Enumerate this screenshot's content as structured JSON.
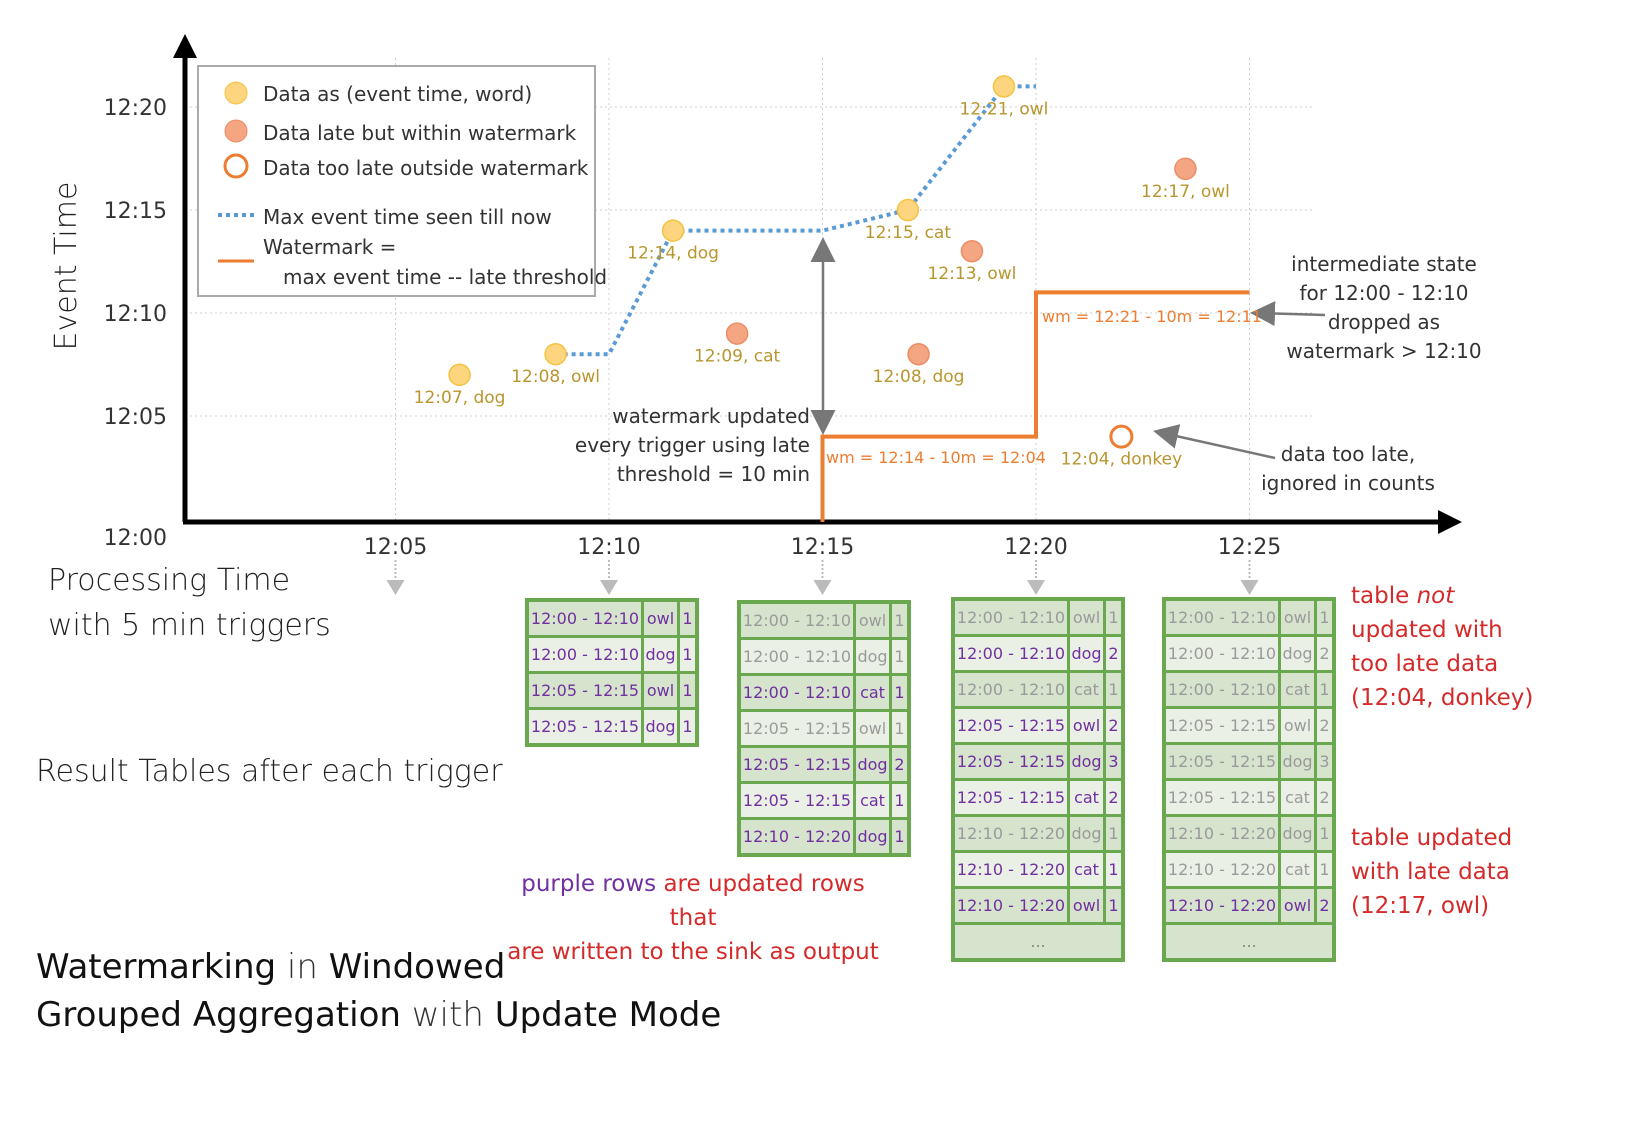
{
  "colors": {
    "on_time": "#fdd57e",
    "late": "#f4a582",
    "too_late": "#ed7d31",
    "max_line": "#5b9bd5",
    "watermark": "#ed7d31",
    "table_border": "#6aa84f",
    "updated_text": "#7030a0",
    "stale_text": "#9a9a9a",
    "note_red": "#d42a2a"
  },
  "axes": {
    "y_label": "Event Time",
    "y_ticks": [
      "12:00",
      "12:05",
      "12:10",
      "12:15",
      "12:20"
    ],
    "x_ticks": [
      "12:05",
      "12:10",
      "12:15",
      "12:20",
      "12:25"
    ],
    "x_label_line1": "Processing Time",
    "x_label_line2": "with 5 min triggers"
  },
  "legend": {
    "on_time": "Data as (event time, word)",
    "late": "Data late but within watermark",
    "too_late": "Data too late outside watermark",
    "max_line": "Max event time seen till now",
    "watermark_line1": "Watermark =",
    "watermark_line2": "max event time -- late threshold"
  },
  "points": [
    {
      "label": "12:07, dog",
      "event": "12:07",
      "processing": "12:06:30",
      "kind": "on_time"
    },
    {
      "label": "12:08, owl",
      "event": "12:08",
      "processing": "12:08:45",
      "kind": "on_time"
    },
    {
      "label": "12:14, dog",
      "event": "12:14",
      "processing": "12:11:30",
      "kind": "on_time"
    },
    {
      "label": "12:09, cat",
      "event": "12:09",
      "processing": "12:13:00",
      "kind": "late"
    },
    {
      "label": "12:15, cat",
      "event": "12:15",
      "processing": "12:17:00",
      "kind": "on_time"
    },
    {
      "label": "12:08, dog",
      "event": "12:08",
      "processing": "12:17:15",
      "kind": "late"
    },
    {
      "label": "12:13, owl",
      "event": "12:13",
      "processing": "12:18:30",
      "kind": "late"
    },
    {
      "label": "12:21, owl",
      "event": "12:21",
      "processing": "12:19:15",
      "kind": "on_time"
    },
    {
      "label": "12:04, donkey",
      "event": "12:04",
      "processing": "12:22:00",
      "kind": "too_late"
    },
    {
      "label": "12:17, owl",
      "event": "12:17",
      "processing": "12:23:30",
      "kind": "late"
    }
  ],
  "max_event_line": [
    [
      "12:08:45",
      "12:08"
    ],
    [
      "12:10:00",
      "12:08"
    ],
    [
      "12:11:30",
      "12:14"
    ],
    [
      "12:15:00",
      "12:14"
    ],
    [
      "12:17:00",
      "12:15"
    ],
    [
      "12:19:15",
      "12:21"
    ],
    [
      "12:20:00",
      "12:21"
    ]
  ],
  "watermark_line": [
    [
      "12:15:00",
      "12:00"
    ],
    [
      "12:15:00",
      "12:04"
    ],
    [
      "12:20:00",
      "12:04"
    ],
    [
      "12:20:00",
      "12:11"
    ],
    [
      "12:25:00",
      "12:11"
    ]
  ],
  "annotations": {
    "wm1": "wm = 12:14 - 10m = 12:04",
    "wm2": "wm = 12:21 - 10m = 12:11",
    "wm_updated": [
      "watermark updated",
      "every trigger using late",
      "threshold = 10 min"
    ],
    "intermediate": [
      "intermediate state",
      "for 12:00 - 12:10",
      "dropped as",
      "watermark > 12:10"
    ],
    "too_late": [
      "data too late,",
      "ignored in counts"
    ],
    "result_tables": "Result Tables after each trigger",
    "purple_rows": "purple rows",
    "purple_rest": " are updated rows that",
    "purple_line2": "are written to the sink as output",
    "not_updated": [
      "table ",
      "not",
      " updated with",
      "too late data",
      "(12:04, donkey)"
    ],
    "updated": [
      "table updated",
      "with late data",
      "(12:17, owl)"
    ]
  },
  "title": {
    "w1": "Watermarking",
    "w2": " in ",
    "w3": "Windowed",
    "w4": "Grouped Aggregation",
    "w5": " with ",
    "w6": "Update Mode"
  },
  "tables": [
    {
      "trigger": "12:10",
      "rows": [
        [
          "12:00 - 12:10",
          "owl",
          "1",
          true
        ],
        [
          "12:00 - 12:10",
          "dog",
          "1",
          true
        ],
        [
          "12:05 - 12:15",
          "owl",
          "1",
          true
        ],
        [
          "12:05 - 12:15",
          "dog",
          "1",
          true
        ]
      ],
      "more": ""
    },
    {
      "trigger": "12:15",
      "rows": [
        [
          "12:00 - 12:10",
          "owl",
          "1",
          false
        ],
        [
          "12:00 - 12:10",
          "dog",
          "1",
          false
        ],
        [
          "12:00 - 12:10",
          "cat",
          "1",
          true
        ],
        [
          "12:05 - 12:15",
          "owl",
          "1",
          false
        ],
        [
          "12:05 - 12:15",
          "dog",
          "2",
          true
        ],
        [
          "12:05 - 12:15",
          "cat",
          "1",
          true
        ],
        [
          "12:10 - 12:20",
          "dog",
          "1",
          true
        ]
      ],
      "more": ""
    },
    {
      "trigger": "12:20",
      "rows": [
        [
          "12:00 - 12:10",
          "owl",
          "1",
          false
        ],
        [
          "12:00 - 12:10",
          "dog",
          "2",
          true
        ],
        [
          "12:00 - 12:10",
          "cat",
          "1",
          false
        ],
        [
          "12:05 - 12:15",
          "owl",
          "2",
          true
        ],
        [
          "12:05 - 12:15",
          "dog",
          "3",
          true
        ],
        [
          "12:05 - 12:15",
          "cat",
          "2",
          true
        ],
        [
          "12:10 - 12:20",
          "dog",
          "1",
          false
        ],
        [
          "12:10 - 12:20",
          "cat",
          "1",
          true
        ],
        [
          "12:10 - 12:20",
          "owl",
          "1",
          true
        ]
      ],
      "more": "..."
    },
    {
      "trigger": "12:25",
      "rows": [
        [
          "12:00 - 12:10",
          "owl",
          "1",
          false
        ],
        [
          "12:00 - 12:10",
          "dog",
          "2",
          false
        ],
        [
          "12:00 - 12:10",
          "cat",
          "1",
          false
        ],
        [
          "12:05 - 12:15",
          "owl",
          "2",
          false
        ],
        [
          "12:05 - 12:15",
          "dog",
          "3",
          false
        ],
        [
          "12:05 - 12:15",
          "cat",
          "2",
          false
        ],
        [
          "12:10 - 12:20",
          "dog",
          "1",
          false
        ],
        [
          "12:10 - 12:20",
          "cat",
          "1",
          false
        ],
        [
          "12:10 - 12:20",
          "owl",
          "2",
          true
        ]
      ],
      "more": "..."
    }
  ]
}
